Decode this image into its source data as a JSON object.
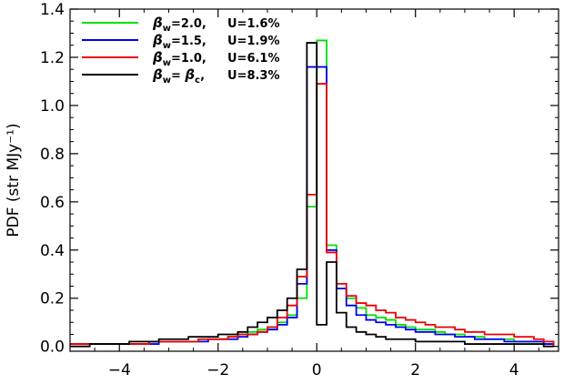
{
  "chart_data": {
    "type": "line",
    "step": true,
    "title": "",
    "xlabel": "",
    "ylabel": "PDF (str MJy⁻¹)",
    "xlim": [
      -5,
      4.9
    ],
    "ylim": [
      -0.02,
      1.4
    ],
    "xticks": [
      -4,
      -2,
      0,
      2,
      4
    ],
    "xtick_labels": [
      "−4",
      "−2",
      "0",
      "2",
      "4"
    ],
    "yticks": [
      0.0,
      0.2,
      0.4,
      0.6,
      0.8,
      1.0,
      1.2,
      1.4
    ],
    "ytick_labels": [
      "0.0",
      "0.2",
      "0.4",
      "0.6",
      "0.8",
      "1.0",
      "1.2",
      "1.4"
    ],
    "grid": false,
    "legend_position": "top-left",
    "x": [
      -5.0,
      -4.8,
      -4.6,
      -4.4,
      -4.2,
      -4.0,
      -3.8,
      -3.6,
      -3.4,
      -3.2,
      -3.0,
      -2.8,
      -2.6,
      -2.4,
      -2.2,
      -2.0,
      -1.8,
      -1.6,
      -1.4,
      -1.2,
      -1.0,
      -0.8,
      -0.6,
      -0.4,
      -0.2,
      0.0,
      0.2,
      0.4,
      0.6,
      0.8,
      1.0,
      1.2,
      1.4,
      1.6,
      1.8,
      2.0,
      2.2,
      2.4,
      2.6,
      2.8,
      3.0,
      3.2,
      3.4,
      3.6,
      3.8,
      4.0,
      4.2,
      4.4,
      4.6
    ],
    "bin_width": 0.2,
    "series": [
      {
        "name_parts": {
          "beta": "β",
          "sub": "w",
          "value": "=2.0,",
          "u": "U=1.6%"
        },
        "color": "#00e000",
        "values": [
          0.01,
          0.01,
          0.01,
          0.01,
          0.01,
          0.01,
          0.01,
          0.01,
          0.02,
          0.02,
          0.02,
          0.02,
          0.02,
          0.03,
          0.03,
          0.03,
          0.04,
          0.05,
          0.06,
          0.07,
          0.08,
          0.1,
          0.13,
          0.2,
          0.58,
          1.27,
          0.42,
          0.24,
          0.2,
          0.16,
          0.13,
          0.12,
          0.11,
          0.09,
          0.08,
          0.07,
          0.07,
          0.06,
          0.05,
          0.05,
          0.04,
          0.04,
          0.03,
          0.03,
          0.03,
          0.02,
          0.02,
          0.02,
          0.01
        ]
      },
      {
        "name_parts": {
          "beta": "β",
          "sub": "w",
          "value": "=1.5,",
          "u": "U=1.9%"
        },
        "color": "#0000ee",
        "values": [
          0.01,
          0.01,
          0.01,
          0.01,
          0.01,
          0.01,
          0.01,
          0.01,
          0.01,
          0.02,
          0.02,
          0.02,
          0.02,
          0.02,
          0.03,
          0.03,
          0.03,
          0.04,
          0.05,
          0.06,
          0.07,
          0.09,
          0.12,
          0.26,
          1.16,
          1.16,
          0.4,
          0.24,
          0.17,
          0.13,
          0.11,
          0.1,
          0.09,
          0.08,
          0.07,
          0.06,
          0.06,
          0.05,
          0.05,
          0.04,
          0.04,
          0.03,
          0.03,
          0.03,
          0.02,
          0.02,
          0.02,
          0.02,
          0.01
        ]
      },
      {
        "name_parts": {
          "beta": "β",
          "sub": "w",
          "value": "=1.0,",
          "u": "U=6.1%"
        },
        "color": "#ee0000",
        "values": [
          0.01,
          0.01,
          0.01,
          0.01,
          0.01,
          0.01,
          0.01,
          0.01,
          0.02,
          0.02,
          0.02,
          0.02,
          0.02,
          0.03,
          0.03,
          0.03,
          0.04,
          0.05,
          0.05,
          0.06,
          0.08,
          0.12,
          0.17,
          0.29,
          0.63,
          1.09,
          0.39,
          0.26,
          0.21,
          0.18,
          0.17,
          0.15,
          0.14,
          0.12,
          0.11,
          0.1,
          0.09,
          0.08,
          0.08,
          0.07,
          0.06,
          0.06,
          0.05,
          0.05,
          0.05,
          0.04,
          0.04,
          0.03,
          0.02
        ]
      },
      {
        "name_parts": {
          "beta": "β",
          "sub": "w",
          "value": "= ",
          "beta2": "β",
          "sub2": "c",
          "tail": ",",
          "u": "U=8.3%"
        },
        "color": "#000000",
        "values": [
          0.0,
          0.0,
          0.01,
          0.01,
          0.01,
          0.01,
          0.02,
          0.02,
          0.02,
          0.03,
          0.03,
          0.03,
          0.04,
          0.04,
          0.04,
          0.05,
          0.05,
          0.06,
          0.08,
          0.1,
          0.12,
          0.15,
          0.2,
          0.32,
          1.26,
          0.09,
          0.35,
          0.14,
          0.08,
          0.06,
          0.05,
          0.04,
          0.03,
          0.03,
          0.03,
          0.02,
          0.02,
          0.02,
          0.02,
          0.02,
          0.01,
          0.01,
          0.01,
          0.01,
          0.01,
          0.01,
          0.01,
          0.01,
          0.0
        ]
      }
    ]
  }
}
